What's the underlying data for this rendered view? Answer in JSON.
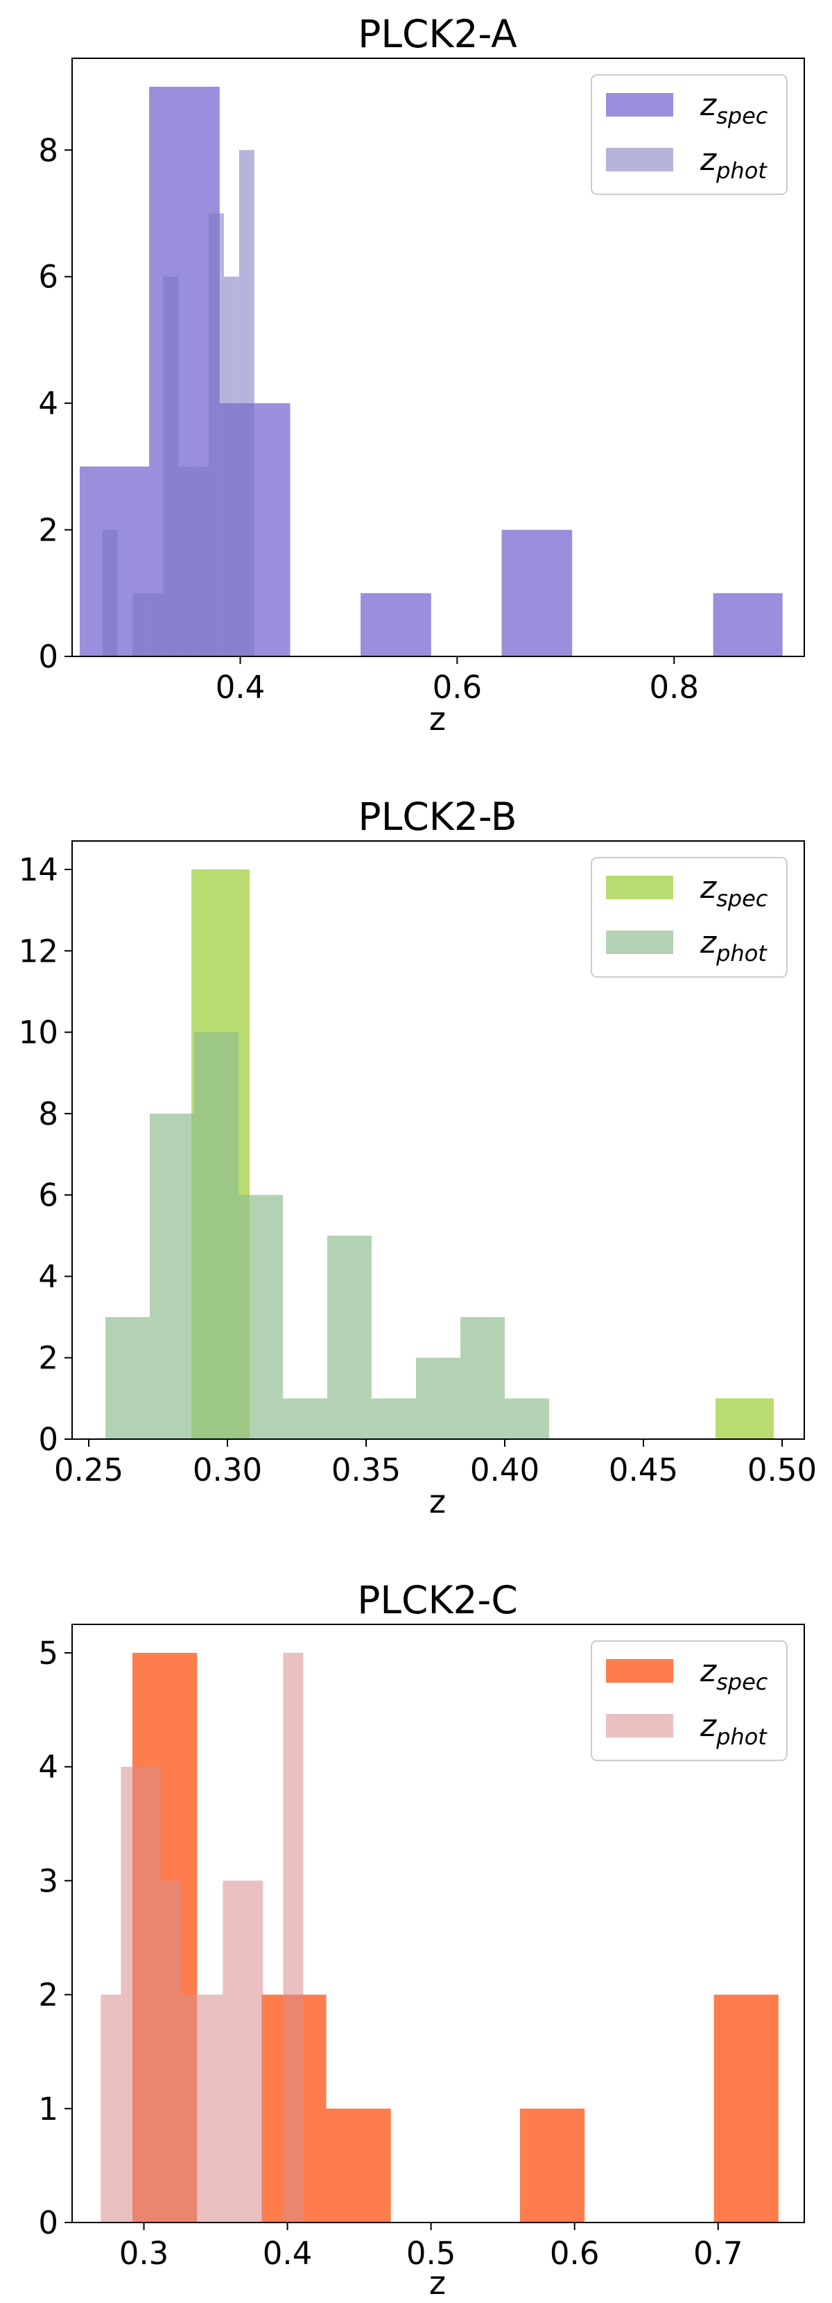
{
  "chart_data": [
    {
      "type": "bar",
      "title": "PLCK2-A",
      "xlabel": "z",
      "ylabel": "",
      "xlim": [
        0.245,
        0.92
      ],
      "ylim": [
        0,
        9.45
      ],
      "xticks": [
        0.4,
        0.6,
        0.8
      ],
      "xtick_labels": [
        "0.4",
        "0.6",
        "0.8"
      ],
      "yticks": [
        0,
        2,
        4,
        6,
        8
      ],
      "ytick_labels": [
        "0",
        "2",
        "4",
        "6",
        "8"
      ],
      "legend_position": "upper right",
      "series": [
        {
          "name": "z_spec",
          "legend_main": "z",
          "legend_sub": "spec",
          "color": "#6a5acd",
          "opacity": 0.68,
          "bins": [
            {
              "x0": 0.252,
              "x1": 0.316,
              "count": 3
            },
            {
              "x0": 0.316,
              "x1": 0.381,
              "count": 9
            },
            {
              "x0": 0.381,
              "x1": 0.446,
              "count": 4
            },
            {
              "x0": 0.446,
              "x1": 0.511,
              "count": 0
            },
            {
              "x0": 0.511,
              "x1": 0.576,
              "count": 1
            },
            {
              "x0": 0.576,
              "x1": 0.641,
              "count": 0
            },
            {
              "x0": 0.641,
              "x1": 0.706,
              "count": 2
            },
            {
              "x0": 0.706,
              "x1": 0.771,
              "count": 0
            },
            {
              "x0": 0.771,
              "x1": 0.836,
              "count": 0
            },
            {
              "x0": 0.836,
              "x1": 0.9,
              "count": 1
            }
          ]
        },
        {
          "name": "z_phot",
          "legend_main": "z",
          "legend_sub": "phot",
          "color": "#7b77c0",
          "opacity": 0.55,
          "bins": [
            {
              "x0": 0.273,
              "x1": 0.287,
              "count": 2
            },
            {
              "x0": 0.287,
              "x1": 0.301,
              "count": 0
            },
            {
              "x0": 0.301,
              "x1": 0.315,
              "count": 1
            },
            {
              "x0": 0.315,
              "x1": 0.329,
              "count": 1
            },
            {
              "x0": 0.329,
              "x1": 0.343,
              "count": 6
            },
            {
              "x0": 0.343,
              "x1": 0.357,
              "count": 3
            },
            {
              "x0": 0.357,
              "x1": 0.371,
              "count": 3
            },
            {
              "x0": 0.371,
              "x1": 0.385,
              "count": 7
            },
            {
              "x0": 0.385,
              "x1": 0.399,
              "count": 6
            },
            {
              "x0": 0.399,
              "x1": 0.413,
              "count": 8
            }
          ]
        }
      ]
    },
    {
      "type": "bar",
      "title": "PLCK2-B",
      "xlabel": "z",
      "ylabel": "",
      "xlim": [
        0.244,
        0.508
      ],
      "ylim": [
        0,
        14.7
      ],
      "xticks": [
        0.25,
        0.3,
        0.35,
        0.4,
        0.45,
        0.5
      ],
      "xtick_labels": [
        "0.25",
        "0.30",
        "0.35",
        "0.40",
        "0.45",
        "0.50"
      ],
      "yticks": [
        0,
        2,
        4,
        6,
        8,
        10,
        12,
        14
      ],
      "ytick_labels": [
        "0",
        "2",
        "4",
        "6",
        "8",
        "10",
        "12",
        "14"
      ],
      "legend_position": "upper right",
      "series": [
        {
          "name": "z_spec",
          "legend_main": "z",
          "legend_sub": "spec",
          "color": "#9acd32",
          "opacity": 0.7,
          "bins": [
            {
              "x0": 0.287,
              "x1": 0.308,
              "count": 14
            },
            {
              "x0": 0.308,
              "x1": 0.329,
              "count": 0
            },
            {
              "x0": 0.329,
              "x1": 0.35,
              "count": 0
            },
            {
              "x0": 0.35,
              "x1": 0.371,
              "count": 0
            },
            {
              "x0": 0.371,
              "x1": 0.392,
              "count": 0
            },
            {
              "x0": 0.392,
              "x1": 0.413,
              "count": 0
            },
            {
              "x0": 0.413,
              "x1": 0.434,
              "count": 0
            },
            {
              "x0": 0.434,
              "x1": 0.455,
              "count": 0
            },
            {
              "x0": 0.455,
              "x1": 0.476,
              "count": 0
            },
            {
              "x0": 0.476,
              "x1": 0.497,
              "count": 1
            }
          ]
        },
        {
          "name": "z_phot",
          "legend_main": "z",
          "legend_sub": "phot",
          "color": "#8fbc8f",
          "opacity": 0.68,
          "bins": [
            {
              "x0": 0.256,
              "x1": 0.272,
              "count": 3
            },
            {
              "x0": 0.272,
              "x1": 0.288,
              "count": 8
            },
            {
              "x0": 0.288,
              "x1": 0.304,
              "count": 10
            },
            {
              "x0": 0.304,
              "x1": 0.32,
              "count": 6
            },
            {
              "x0": 0.32,
              "x1": 0.336,
              "count": 1
            },
            {
              "x0": 0.336,
              "x1": 0.352,
              "count": 5
            },
            {
              "x0": 0.352,
              "x1": 0.368,
              "count": 1
            },
            {
              "x0": 0.368,
              "x1": 0.384,
              "count": 2
            },
            {
              "x0": 0.384,
              "x1": 0.4,
              "count": 3
            },
            {
              "x0": 0.4,
              "x1": 0.416,
              "count": 1
            }
          ]
        }
      ]
    },
    {
      "type": "bar",
      "title": "PLCK2-C",
      "xlabel": "z",
      "ylabel": "",
      "xlim": [
        0.25,
        0.76
      ],
      "ylim": [
        0,
        5.25
      ],
      "xticks": [
        0.3,
        0.4,
        0.5,
        0.6,
        0.7
      ],
      "xtick_labels": [
        "0.3",
        "0.4",
        "0.5",
        "0.6",
        "0.7"
      ],
      "yticks": [
        0,
        1,
        2,
        3,
        4,
        5
      ],
      "ytick_labels": [
        "0",
        "1",
        "2",
        "3",
        "4",
        "5"
      ],
      "legend_position": "upper right",
      "series": [
        {
          "name": "z_spec",
          "legend_main": "z",
          "legend_sub": "spec",
          "color": "#ff4500",
          "opacity": 0.7,
          "bins": [
            {
              "x0": 0.292,
              "x1": 0.337,
              "count": 5
            },
            {
              "x0": 0.337,
              "x1": 0.382,
              "count": 0
            },
            {
              "x0": 0.382,
              "x1": 0.427,
              "count": 2
            },
            {
              "x0": 0.427,
              "x1": 0.472,
              "count": 1
            },
            {
              "x0": 0.472,
              "x1": 0.517,
              "count": 0
            },
            {
              "x0": 0.517,
              "x1": 0.562,
              "count": 0
            },
            {
              "x0": 0.562,
              "x1": 0.607,
              "count": 1
            },
            {
              "x0": 0.607,
              "x1": 0.652,
              "count": 0
            },
            {
              "x0": 0.652,
              "x1": 0.697,
              "count": 0
            },
            {
              "x0": 0.697,
              "x1": 0.742,
              "count": 2
            }
          ]
        },
        {
          "name": "z_phot",
          "legend_main": "z",
          "legend_sub": "phot",
          "color": "#d98c8c",
          "opacity": 0.55,
          "bins": [
            {
              "x0": 0.27,
              "x1": 0.284,
              "count": 2
            },
            {
              "x0": 0.284,
              "x1": 0.298,
              "count": 4
            },
            {
              "x0": 0.298,
              "x1": 0.312,
              "count": 4
            },
            {
              "x0": 0.312,
              "x1": 0.326,
              "count": 3
            },
            {
              "x0": 0.326,
              "x1": 0.34,
              "count": 2
            },
            {
              "x0": 0.34,
              "x1": 0.355,
              "count": 2
            },
            {
              "x0": 0.355,
              "x1": 0.369,
              "count": 3
            },
            {
              "x0": 0.369,
              "x1": 0.383,
              "count": 3
            },
            {
              "x0": 0.383,
              "x1": 0.397,
              "count": 0
            },
            {
              "x0": 0.397,
              "x1": 0.411,
              "count": 5
            }
          ]
        }
      ]
    }
  ]
}
